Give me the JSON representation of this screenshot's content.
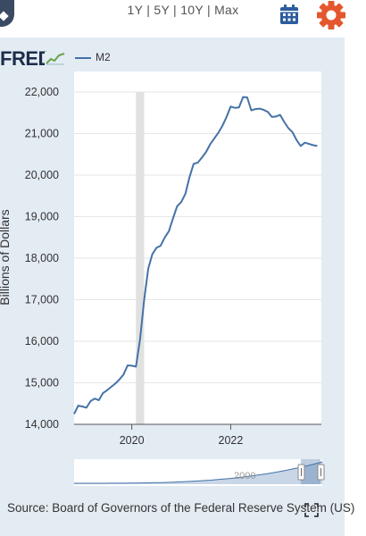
{
  "toolbar": {
    "ranges": [
      "1Y",
      "5Y",
      "10Y",
      "Max"
    ],
    "separator": "|",
    "calendar_icon": "calendar-icon",
    "settings_icon": "gear-icon",
    "accent_color": "#2b5c9e",
    "settings_color": "#e4572e"
  },
  "branding": {
    "logo_text": "FRED",
    "logo_icon": "sparkline-icon"
  },
  "source_text": "Source: Board of Governors of the Federal Reserve System (US)",
  "chart_data": {
    "type": "line",
    "title": "",
    "ylabel": "Billions of Dollars",
    "xlabel": "",
    "ylim": [
      14000,
      22000
    ],
    "yticks": [
      14000,
      15000,
      16000,
      17000,
      18000,
      19000,
      20000,
      21000,
      22000
    ],
    "ytick_labels": [
      "14,000",
      "15,000",
      "16,000",
      "17,000",
      "18,000",
      "19,000",
      "20,000",
      "21,000",
      "22,000"
    ],
    "xlim": [
      "2018-11",
      "2023-11"
    ],
    "xticks": [
      "2020-01",
      "2022-01"
    ],
    "xtick_labels": [
      "2020",
      "2022"
    ],
    "legend_placement": "top-left",
    "recession_shading": [
      [
        "2020-02",
        "2020-04"
      ]
    ],
    "series": [
      {
        "name": "M2",
        "color": "#4572a7",
        "x": [
          "2018-11",
          "2018-12",
          "2019-01",
          "2019-02",
          "2019-03",
          "2019-04",
          "2019-05",
          "2019-06",
          "2019-07",
          "2019-08",
          "2019-09",
          "2019-10",
          "2019-11",
          "2019-12",
          "2020-01",
          "2020-02",
          "2020-03",
          "2020-04",
          "2020-05",
          "2020-06",
          "2020-07",
          "2020-08",
          "2020-09",
          "2020-10",
          "2020-11",
          "2020-12",
          "2021-01",
          "2021-02",
          "2021-03",
          "2021-04",
          "2021-05",
          "2021-06",
          "2021-07",
          "2021-08",
          "2021-09",
          "2021-10",
          "2021-11",
          "2021-12",
          "2022-01",
          "2022-02",
          "2022-03",
          "2022-04",
          "2022-05",
          "2022-06",
          "2022-07",
          "2022-08",
          "2022-09",
          "2022-10",
          "2022-11",
          "2022-12",
          "2023-01",
          "2023-02",
          "2023-03",
          "2023-04",
          "2023-05",
          "2023-06",
          "2023-07",
          "2023-08",
          "2023-09",
          "2023-10"
        ],
        "values": [
          14250,
          14450,
          14430,
          14400,
          14560,
          14620,
          14580,
          14750,
          14820,
          14900,
          14980,
          15080,
          15200,
          15420,
          15410,
          15390,
          16050,
          17000,
          17750,
          18100,
          18250,
          18300,
          18500,
          18650,
          18960,
          19250,
          19350,
          19550,
          19950,
          20270,
          20300,
          20420,
          20550,
          20740,
          20880,
          21020,
          21190,
          21400,
          21650,
          21620,
          21630,
          21880,
          21870,
          21560,
          21590,
          21600,
          21570,
          21520,
          21400,
          21410,
          21450,
          21280,
          21130,
          21030,
          20840,
          20700,
          20780,
          20750,
          20720,
          20700
        ]
      }
    ],
    "navigator": {
      "label": "2000",
      "handle_left_icon": "grip-handle-icon",
      "handle_right_icon": "grip-handle-icon"
    }
  }
}
